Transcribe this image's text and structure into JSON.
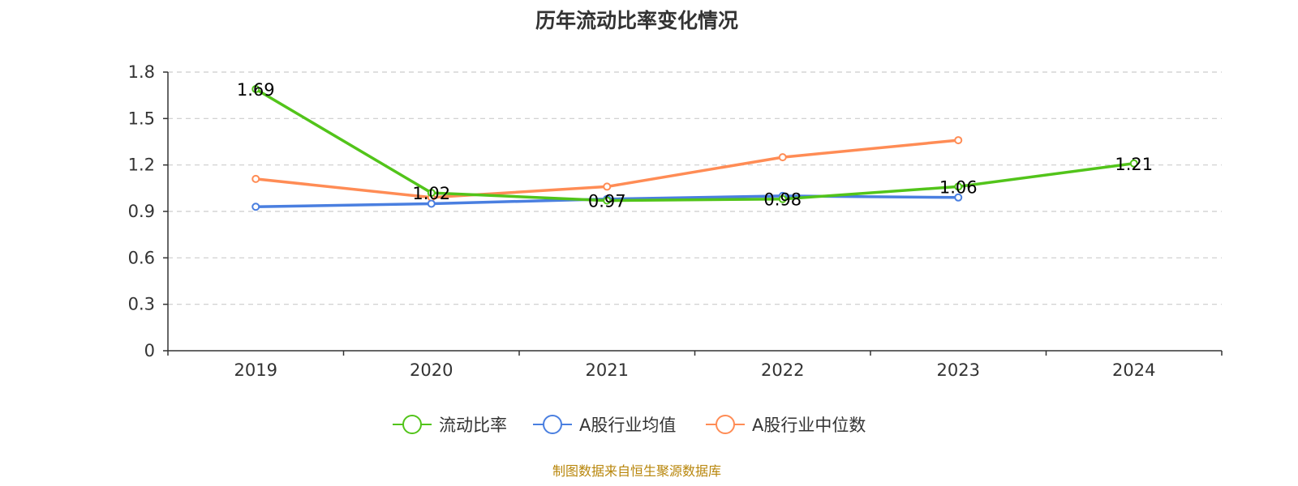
{
  "chart_data": {
    "type": "line",
    "title": "历年流动比率变化情况",
    "categories": [
      "2019",
      "2020",
      "2021",
      "2022",
      "2023",
      "2024"
    ],
    "ylim": [
      0,
      1.8
    ],
    "yticks": [
      "0",
      "0.3",
      "0.6",
      "0.9",
      "1.2",
      "1.5",
      "1.8"
    ],
    "grid": true,
    "legend_position": "bottom",
    "series": [
      {
        "name": "流动比率",
        "color": "#52c41a",
        "values": [
          1.69,
          1.02,
          0.97,
          0.98,
          1.06,
          1.21
        ],
        "labels": [
          "1.69",
          "1.02",
          "0.97",
          "0.98",
          "1.06",
          "1.21"
        ]
      },
      {
        "name": "A股行业均值",
        "color": "#4a7fe0",
        "values": [
          0.93,
          0.95,
          0.98,
          1.0,
          0.99,
          null
        ]
      },
      {
        "name": "A股行业中位数",
        "color": "#ff8c55",
        "values": [
          1.11,
          0.99,
          1.06,
          1.25,
          1.36,
          null
        ]
      }
    ]
  },
  "source_note": "制图数据来自恒生聚源数据库"
}
